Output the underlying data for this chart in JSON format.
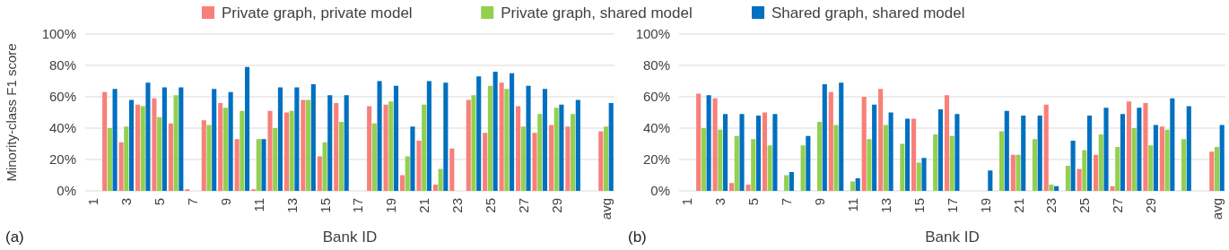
{
  "chart_data": [
    {
      "type": "bar",
      "xlabel": "Bank ID",
      "ylabel": "Minority-class F1 score",
      "annotations": [
        "(a)"
      ],
      "legend": "top",
      "grid": "y",
      "categories": [
        "1",
        null,
        "3",
        null,
        "5",
        null,
        "7",
        null,
        "9",
        null,
        "11",
        null,
        "13",
        null,
        "15",
        null,
        "17",
        null,
        "19",
        null,
        "21",
        null,
        "23",
        null,
        "25",
        null,
        "27",
        null,
        "29",
        null,
        null,
        "avg"
      ],
      "ylim": [
        0,
        100
      ],
      "yticks": [
        {
          "value": 0,
          "label": "0%"
        },
        {
          "value": 20,
          "label": "20%"
        },
        {
          "value": 40,
          "label": "40%"
        },
        {
          "value": 60,
          "label": "60%"
        },
        {
          "value": 80,
          "label": "80%"
        },
        {
          "value": 100,
          "label": "100%"
        }
      ],
      "series": [
        {
          "name": "Private graph, private model",
          "color": "#f8807a",
          "values": [
            null,
            63,
            31,
            55,
            59,
            43,
            1,
            45,
            56,
            33,
            1,
            51,
            50,
            58,
            22,
            56,
            null,
            54,
            55,
            10,
            32,
            4,
            27,
            58,
            37,
            69,
            54,
            37,
            42,
            41,
            null,
            38
          ]
        },
        {
          "name": "Private graph, shared model",
          "color": "#92d050",
          "values": [
            null,
            40,
            41,
            54,
            47,
            61,
            null,
            42,
            53,
            51,
            33,
            40,
            51,
            58,
            31,
            44,
            null,
            43,
            57,
            22,
            55,
            14,
            null,
            61,
            67,
            65,
            41,
            49,
            53,
            49,
            null,
            41
          ]
        },
        {
          "name": "Shared graph, shared model",
          "color": "#0070c0",
          "values": [
            null,
            65,
            58,
            69,
            66,
            66,
            null,
            65,
            63,
            79,
            33,
            66,
            66,
            68,
            61,
            61,
            null,
            70,
            67,
            41,
            70,
            69,
            null,
            73,
            76,
            75,
            67,
            65,
            55,
            58,
            null,
            56
          ]
        }
      ]
    },
    {
      "type": "bar",
      "xlabel": "Bank ID",
      "annotations": [
        "(b)"
      ],
      "grid": "y",
      "categories": [
        "1",
        null,
        "3",
        null,
        "5",
        null,
        "7",
        null,
        "9",
        null,
        "11",
        null,
        "13",
        null,
        "15",
        null,
        "17",
        null,
        "19",
        null,
        "21",
        null,
        "23",
        null,
        "25",
        null,
        "27",
        null,
        "29",
        null,
        null,
        null,
        "avg"
      ],
      "ylim": [
        0,
        100
      ],
      "yticks": [
        {
          "value": 0,
          "label": "0%"
        },
        {
          "value": 20,
          "label": "20%"
        },
        {
          "value": 40,
          "label": "40%"
        },
        {
          "value": 60,
          "label": "60%"
        },
        {
          "value": 80,
          "label": "80%"
        },
        {
          "value": 100,
          "label": "100%"
        }
      ],
      "series": [
        {
          "color": "#f8807a",
          "values": [
            null,
            62,
            59,
            5,
            4,
            50,
            null,
            null,
            null,
            63,
            null,
            60,
            65,
            null,
            46,
            null,
            61,
            null,
            null,
            null,
            23,
            null,
            55,
            null,
            14,
            23,
            3,
            57,
            56,
            41,
            null,
            null,
            25
          ]
        },
        {
          "color": "#92d050",
          "values": [
            null,
            40,
            39,
            35,
            33,
            29,
            10,
            29,
            44,
            42,
            6,
            33,
            42,
            30,
            18,
            36,
            35,
            null,
            null,
            38,
            23,
            33,
            4,
            16,
            26,
            36,
            28,
            40,
            29,
            39,
            33,
            null,
            28
          ]
        },
        {
          "color": "#0070c0",
          "values": [
            null,
            61,
            49,
            49,
            48,
            49,
            12,
            35,
            68,
            69,
            8,
            55,
            50,
            46,
            21,
            52,
            49,
            null,
            13,
            51,
            48,
            48,
            3,
            32,
            48,
            53,
            49,
            53,
            42,
            59,
            54,
            null,
            42
          ]
        }
      ]
    }
  ]
}
